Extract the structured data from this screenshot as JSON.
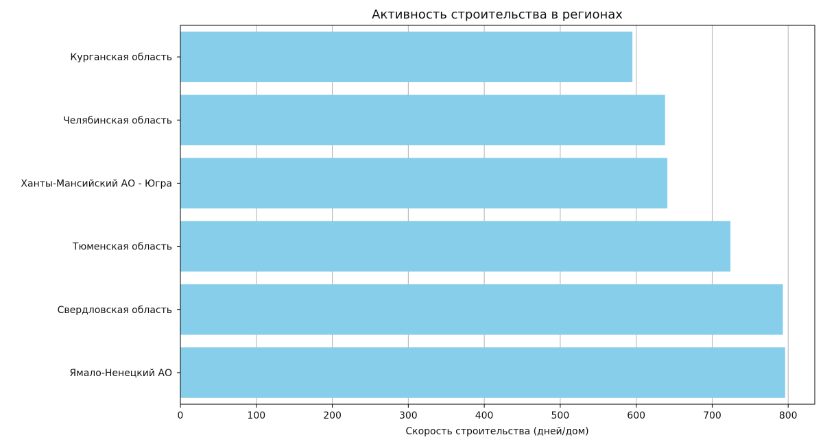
{
  "chart_data": {
    "type": "bar",
    "orientation": "horizontal",
    "title": "Активность строительства в регионах",
    "xlabel": "Скорость строительства (дней/дом)",
    "ylabel": "",
    "xlim": [
      0,
      835
    ],
    "x_ticks": [
      0,
      100,
      200,
      300,
      400,
      500,
      600,
      700,
      800
    ],
    "grid": "vertical",
    "bar_color": "#87CEEB",
    "categories": [
      "Курганская область",
      "Челябинская область",
      "Ханты-Мансийский АО - Югра",
      "Тюменская область",
      "Свердловская область",
      "Ямало-Ненецкий АО"
    ],
    "values": [
      595,
      638,
      641,
      724,
      793,
      796
    ]
  }
}
